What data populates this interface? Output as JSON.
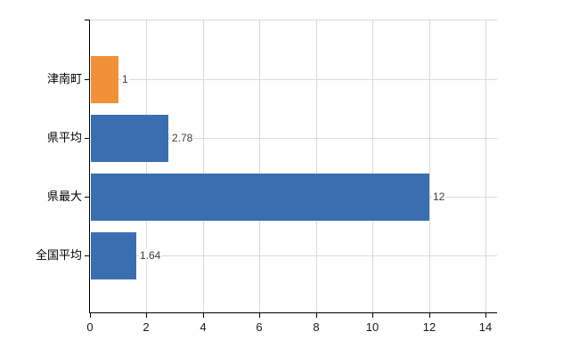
{
  "chart_data": {
    "type": "bar",
    "orientation": "horizontal",
    "categories": [
      "津南町",
      "県平均",
      "県最大",
      "全国平均"
    ],
    "values": [
      1,
      2.78,
      12,
      1.64
    ],
    "value_labels": [
      "1",
      "2.78",
      "12",
      "1.64"
    ],
    "bar_colors": [
      "#F0913A",
      "#3A6EB0",
      "#3A6EB0",
      "#3A6EB0"
    ],
    "xlim": [
      0,
      14
    ],
    "x_ticks": [
      "0",
      "2",
      "4",
      "6",
      "8",
      "10",
      "12",
      "14"
    ],
    "grid": "on",
    "legend": "none"
  },
  "colors": {
    "background": "#ffffff",
    "axis": "#000000",
    "gridline": "#d9d9d9",
    "bar_blue": "#3A6EB0",
    "bar_orange": "#F0913A",
    "tick_label": "#1a1a1a",
    "value_label": "#3c3c3c"
  }
}
